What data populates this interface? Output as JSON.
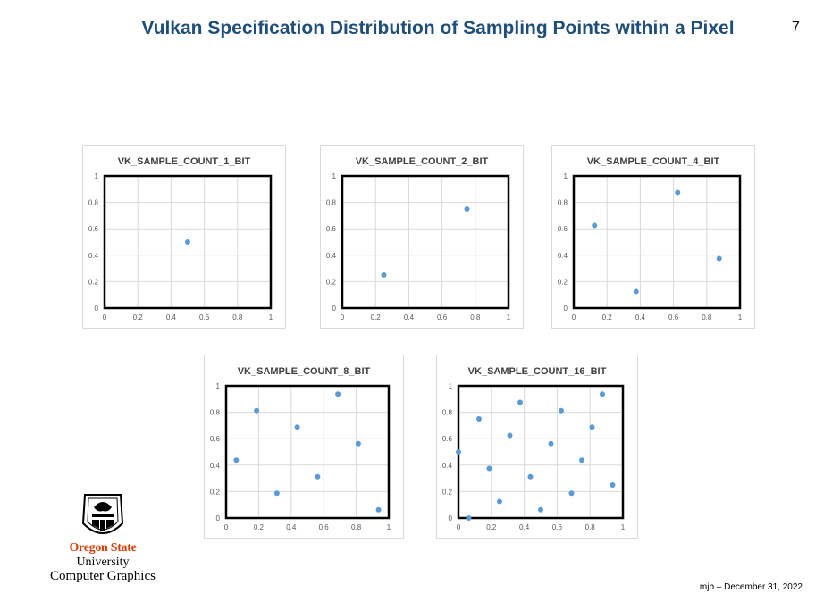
{
  "slide": {
    "title": "Vulkan Specification Distribution of Sampling Points within a Pixel",
    "page_number": "7",
    "footer": "mjb – December 31, 2022"
  },
  "logo": {
    "name": "Oregon State",
    "university": "University",
    "department": "Computer Graphics"
  },
  "colors": {
    "title": "#1f4e79",
    "point": "#5b9bd5",
    "brand": "#d73f09"
  },
  "chart_data": [
    {
      "type": "scatter",
      "title": "VK_SAMPLE_COUNT_1_BIT",
      "xlim": [
        0,
        1
      ],
      "ylim": [
        0,
        1
      ],
      "x_ticks": [
        "0",
        "0.2",
        "0.4",
        "0.6",
        "0.8",
        "1"
      ],
      "y_ticks": [
        "0",
        "0.2",
        "0.4",
        "0.6",
        "0.8",
        "1"
      ],
      "grid": true,
      "points": [
        [
          0.5,
          0.5
        ]
      ]
    },
    {
      "type": "scatter",
      "title": "VK_SAMPLE_COUNT_2_BIT",
      "xlim": [
        0,
        1
      ],
      "ylim": [
        0,
        1
      ],
      "x_ticks": [
        "0",
        "0.2",
        "0.4",
        "0.6",
        "0.8",
        "1"
      ],
      "y_ticks": [
        "0",
        "0.2",
        "0.4",
        "0.6",
        "0.8",
        "1"
      ],
      "grid": true,
      "points": [
        [
          0.75,
          0.75
        ],
        [
          0.25,
          0.25
        ]
      ]
    },
    {
      "type": "scatter",
      "title": "VK_SAMPLE_COUNT_4_BIT",
      "xlim": [
        0,
        1
      ],
      "ylim": [
        0,
        1
      ],
      "x_ticks": [
        "0",
        "0.2",
        "0.4",
        "0.6",
        "0.8",
        "1"
      ],
      "y_ticks": [
        "0",
        "0.2",
        "0.4",
        "0.6",
        "0.8",
        "1"
      ],
      "grid": true,
      "points": [
        [
          0.375,
          0.125
        ],
        [
          0.875,
          0.375
        ],
        [
          0.125,
          0.625
        ],
        [
          0.625,
          0.875
        ]
      ]
    },
    {
      "type": "scatter",
      "title": "VK_SAMPLE_COUNT_8_BIT",
      "xlim": [
        0,
        1
      ],
      "ylim": [
        0,
        1
      ],
      "x_ticks": [
        "0",
        "0.2",
        "0.4",
        "0.6",
        "0.8",
        "1"
      ],
      "y_ticks": [
        "0",
        "0.2",
        "0.4",
        "0.6",
        "0.8",
        "1"
      ],
      "grid": true,
      "points": [
        [
          0.5625,
          0.3125
        ],
        [
          0.4375,
          0.6875
        ],
        [
          0.8125,
          0.5625
        ],
        [
          0.3125,
          0.1875
        ],
        [
          0.1875,
          0.8125
        ],
        [
          0.0625,
          0.4375
        ],
        [
          0.6875,
          0.9375
        ],
        [
          0.9375,
          0.0625
        ]
      ]
    },
    {
      "type": "scatter",
      "title": "VK_SAMPLE_COUNT_16_BIT",
      "xlim": [
        0,
        1
      ],
      "ylim": [
        0,
        1
      ],
      "x_ticks": [
        "0",
        "0.2",
        "0.4",
        "0.6",
        "0.8",
        "1"
      ],
      "y_ticks": [
        "0",
        "0.2",
        "0.4",
        "0.6",
        "0.8",
        "1"
      ],
      "grid": true,
      "points": [
        [
          0.5625,
          0.5625
        ],
        [
          0.4375,
          0.3125
        ],
        [
          0.3125,
          0.625
        ],
        [
          0.75,
          0.4375
        ],
        [
          0.1875,
          0.375
        ],
        [
          0.625,
          0.8125
        ],
        [
          0.8125,
          0.6875
        ],
        [
          0.6875,
          0.1875
        ],
        [
          0.375,
          0.875
        ],
        [
          0.5,
          0.0625
        ],
        [
          0.25,
          0.125
        ],
        [
          0.125,
          0.75
        ],
        [
          0.0,
          0.5
        ],
        [
          0.9375,
          0.25
        ],
        [
          0.875,
          0.9375
        ],
        [
          0.0625,
          0.0
        ]
      ]
    }
  ]
}
